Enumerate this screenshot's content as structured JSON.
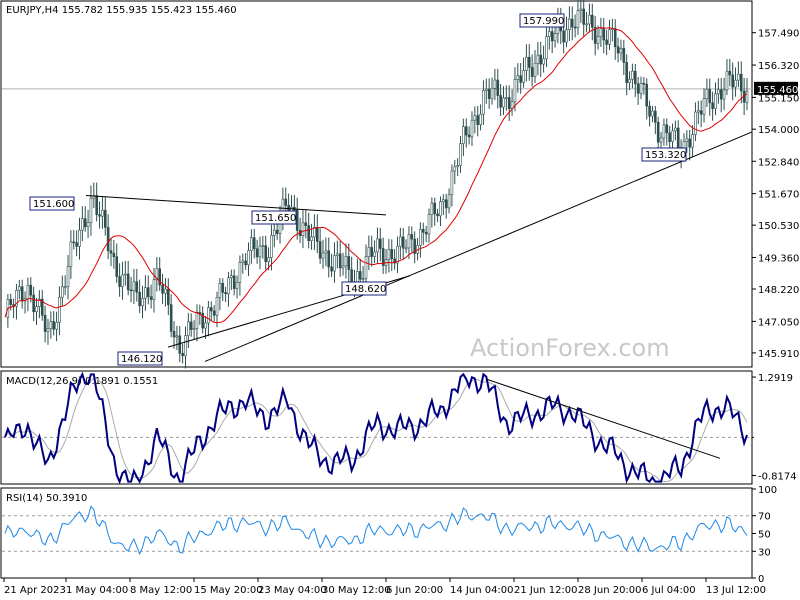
{
  "chart_data": {
    "type": "candlestick",
    "symbol_header": "EURJPY,H4  155.782 155.935 155.423 155.460",
    "watermark": "ActionForex.com",
    "price_axis": {
      "ylim": [
        145.4,
        158.6
      ],
      "ticks": [
        "157.490",
        "156.320",
        "155.150",
        "154.000",
        "152.840",
        "151.670",
        "150.530",
        "149.360",
        "148.220",
        "147.050",
        "145.910"
      ],
      "last_price": "155.460"
    },
    "x_axis": {
      "ticks": [
        "21 Apr 2023",
        "1 May 04:00",
        "8 May 12:00",
        "15 May 20:00",
        "23 May 04:00",
        "30 May 12:00",
        "6 Jun 20:00",
        "14 Jun 04:00",
        "21 Jun 12:00",
        "28 Jun 20:00",
        "6 Jul 04:00",
        "13 Jul 12:00"
      ]
    },
    "price_series_keypoints": [
      {
        "x": "21 Apr 2023",
        "close": 147.2
      },
      {
        "x": "24 Apr",
        "close": 148.4
      },
      {
        "x": "26 Apr",
        "close": 146.5
      },
      {
        "x": "28 Apr",
        "close": 149.3
      },
      {
        "x": "1 May 04:00",
        "close": 151.6
      },
      {
        "x": "3 May",
        "close": 149.2
      },
      {
        "x": "5 May",
        "close": 147.8
      },
      {
        "x": "8 May 12:00",
        "close": 148.6
      },
      {
        "x": "10 May",
        "close": 146.12
      },
      {
        "x": "12 May",
        "close": 147.2
      },
      {
        "x": "15 May 20:00",
        "close": 148.0
      },
      {
        "x": "18 May",
        "close": 149.4
      },
      {
        "x": "23 May 04:00",
        "close": 149.7
      },
      {
        "x": "25 May",
        "close": 151.3
      },
      {
        "x": "27 May",
        "close": 150.0
      },
      {
        "x": "30 May 12:00",
        "close": 149.3
      },
      {
        "x": "1 Jun",
        "close": 148.62
      },
      {
        "x": "3 Jun",
        "close": 149.6
      },
      {
        "x": "6 Jun 20:00",
        "close": 149.5
      },
      {
        "x": "9 Jun",
        "close": 150.2
      },
      {
        "x": "12 Jun",
        "close": 151.2
      },
      {
        "x": "14 Jun 04:00",
        "close": 153.5
      },
      {
        "x": "16 Jun",
        "close": 155.3
      },
      {
        "x": "19 Jun",
        "close": 155.1
      },
      {
        "x": "21 Jun 12:00",
        "close": 156.2
      },
      {
        "x": "23 Jun",
        "close": 157.2
      },
      {
        "x": "25 Jun",
        "close": 157.99
      },
      {
        "x": "28 Jun 20:00",
        "close": 157.7
      },
      {
        "x": "3 Jul",
        "close": 157.0
      },
      {
        "x": "6 Jul 04:00",
        "close": 155.5
      },
      {
        "x": "8 Jul",
        "close": 154.0
      },
      {
        "x": "10 Jul",
        "close": 153.32
      },
      {
        "x": "11 Jul",
        "close": 154.8
      },
      {
        "x": "13 Jul 12:00",
        "close": 155.7
      },
      {
        "x": "15 Jul",
        "close": 155.46
      }
    ],
    "annotations": [
      {
        "label": "151.600",
        "value": 151.6,
        "anchor": "1 May 04:00"
      },
      {
        "label": "146.120",
        "value": 146.12,
        "anchor": "10 May"
      },
      {
        "label": "151.650",
        "value": 151.65,
        "anchor": "25 May"
      },
      {
        "label": "148.620",
        "value": 148.62,
        "anchor": "1 Jun"
      },
      {
        "label": "157.990",
        "value": 157.99,
        "anchor": "25 Jun"
      },
      {
        "label": "153.320",
        "value": 153.32,
        "anchor": "10 Jul"
      }
    ],
    "macd": {
      "label": "MACD(12,26,9) 0.1891 0.1551",
      "ylim": [
        -1.0,
        1.4
      ],
      "ticks": [
        "1.2919",
        "0.00",
        "-0.8174"
      ],
      "value_label": "0.00"
    },
    "rsi": {
      "label": "RSI(14) 50.3910",
      "ylim": [
        0,
        100
      ],
      "ticks": [
        "100",
        "70",
        "50",
        "30",
        "0"
      ]
    }
  }
}
